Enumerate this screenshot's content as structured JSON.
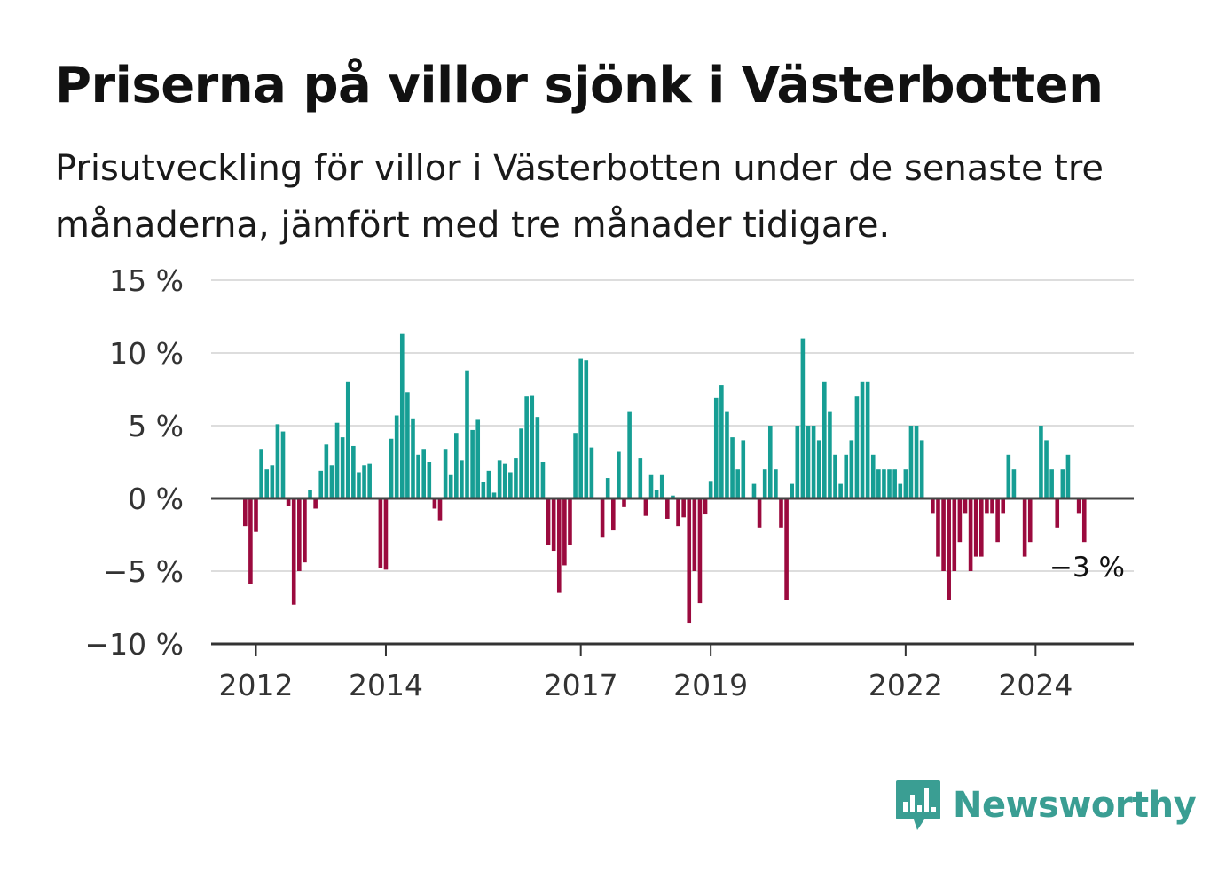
{
  "title": "Priserna på villor sjönk i Västerbotten",
  "subtitle": "Prisutveckling för villor i Västerbotten under de senaste tre månaderna, jämfört med tre månader tidigare.",
  "brand": {
    "name": "Newsworthy",
    "icon": "bar-chart-logo-icon",
    "color": "#3a9e93"
  },
  "chart_data": {
    "type": "bar",
    "title": "Priserna på villor sjönk i Västerbotten",
    "subtitle": "Prisutveckling för villor i Västerbotten under de senaste tre månaderna, jämfört med tre månader tidigare.",
    "xlabel": "",
    "ylabel": "",
    "ylim": [
      -10,
      15
    ],
    "grid": true,
    "yticks": [
      -10,
      -5,
      0,
      5,
      10,
      15
    ],
    "ytick_labels": [
      "−10 %",
      "−5 %",
      "0 %",
      "5 %",
      "10 %",
      "15 %"
    ],
    "xticks": [
      "2012-01",
      "2014-01",
      "2017-01",
      "2019-01",
      "2022-01",
      "2024-01"
    ],
    "xtick_labels": [
      "2012",
      "2014",
      "2017",
      "2019",
      "2022",
      "2024"
    ],
    "start_month": "2011-11",
    "frequency": "monthly",
    "colors": {
      "positive": "#169e94",
      "negative": "#9b0a3e",
      "zero_line": "#444444",
      "grid": "#dddddd"
    },
    "annotation": {
      "text": "−3 %",
      "month": "2024-12"
    },
    "values": [
      -1.9,
      -5.9,
      -2.3,
      3.4,
      2.0,
      2.3,
      5.1,
      4.6,
      -0.5,
      -7.3,
      -5.0,
      -4.4,
      0.6,
      -0.7,
      1.9,
      3.7,
      2.3,
      5.2,
      4.2,
      8.0,
      3.6,
      1.8,
      2.3,
      2.4,
      0,
      -4.8,
      -4.9,
      4.1,
      5.7,
      11.3,
      7.3,
      5.5,
      3.0,
      3.4,
      2.5,
      -0.7,
      -1.5,
      3.4,
      1.6,
      4.5,
      2.6,
      8.8,
      4.7,
      5.4,
      1.1,
      1.9,
      0.4,
      2.6,
      2.4,
      1.8,
      2.8,
      4.8,
      7.0,
      7.1,
      5.6,
      2.5,
      -3.2,
      -3.6,
      -6.5,
      -4.6,
      -3.2,
      4.5,
      9.6,
      9.5,
      3.5,
      0,
      -2.7,
      1.4,
      -2.2,
      3.2,
      -0.6,
      6.0,
      0,
      2.8,
      -1.2,
      1.6,
      0.6,
      1.6,
      -1.4,
      0.2,
      -1.9,
      -1.3,
      -8.6,
      -5.0,
      -7.2,
      -1.1,
      1.2,
      6.9,
      7.8,
      6.0,
      4.2,
      2.0,
      4.0,
      0,
      1.0,
      -2.0,
      2.0,
      5.0,
      2.0,
      -2.0,
      -7.0,
      1.0,
      5.0,
      11.0,
      5.0,
      5.0,
      4.0,
      8.0,
      6.0,
      3.0,
      1.0,
      3.0,
      4.0,
      7.0,
      8.0,
      8.0,
      3.0,
      2.0,
      2.0,
      2.0,
      2.0,
      1.0,
      2.0,
      5.0,
      5.0,
      4.0,
      0,
      -1.0,
      -4.0,
      -5.0,
      -7.0,
      -5.0,
      -3.0,
      -1.0,
      -5.0,
      -4.0,
      -4.0,
      -1.0,
      -1.0,
      -3.0,
      -1.0,
      3.0,
      2.0,
      0,
      -4.0,
      -3.0,
      0,
      5.0,
      4.0,
      2.0,
      -2.0,
      2.0,
      3.0,
      0,
      -1.0,
      -3.0
    ]
  }
}
